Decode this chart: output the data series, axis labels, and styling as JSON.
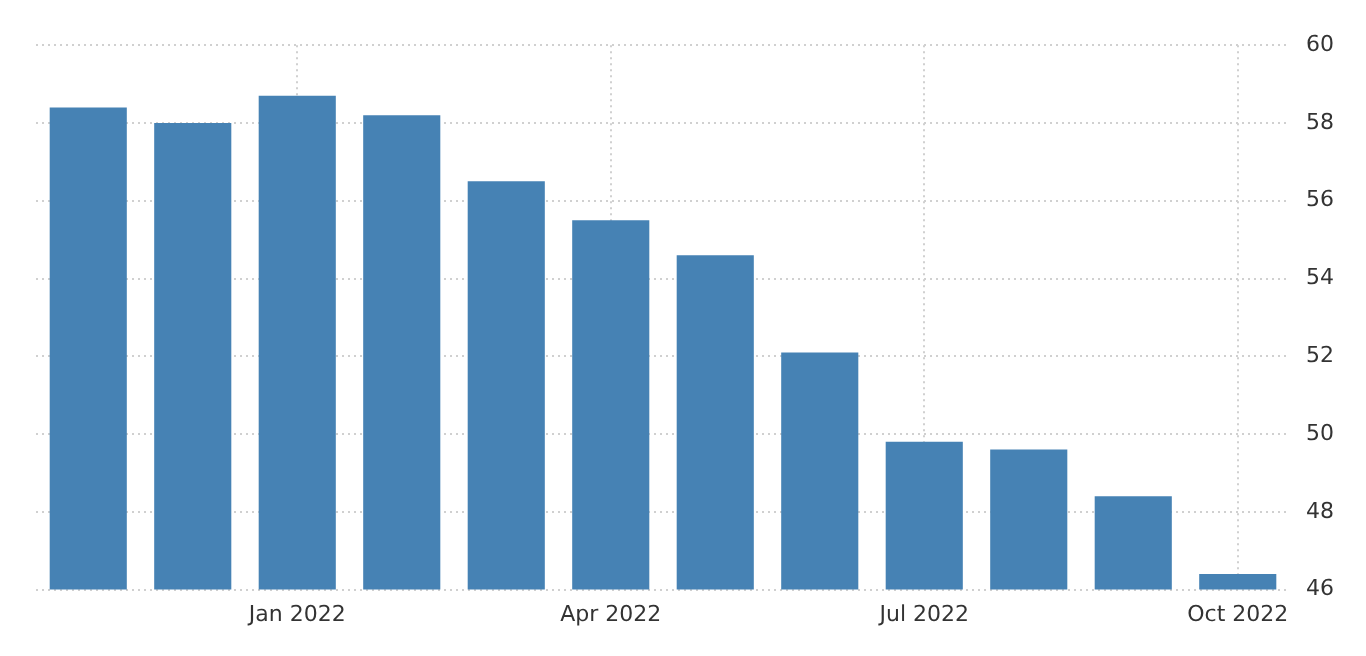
{
  "chart_data": {
    "type": "bar",
    "categories": [
      null,
      null,
      "Jan 2022",
      null,
      null,
      "Apr 2022",
      null,
      null,
      "Jul 2022",
      null,
      null,
      "Oct 2022"
    ],
    "values": [
      58.4,
      58.0,
      58.7,
      58.2,
      56.5,
      55.5,
      54.6,
      52.1,
      49.8,
      49.6,
      48.4,
      46.4
    ],
    "color": "#4682b4",
    "ylim": [
      46,
      60
    ],
    "yticks": [
      46,
      48,
      50,
      52,
      54,
      56,
      58,
      60
    ],
    "grid": true,
    "legend": false
  }
}
